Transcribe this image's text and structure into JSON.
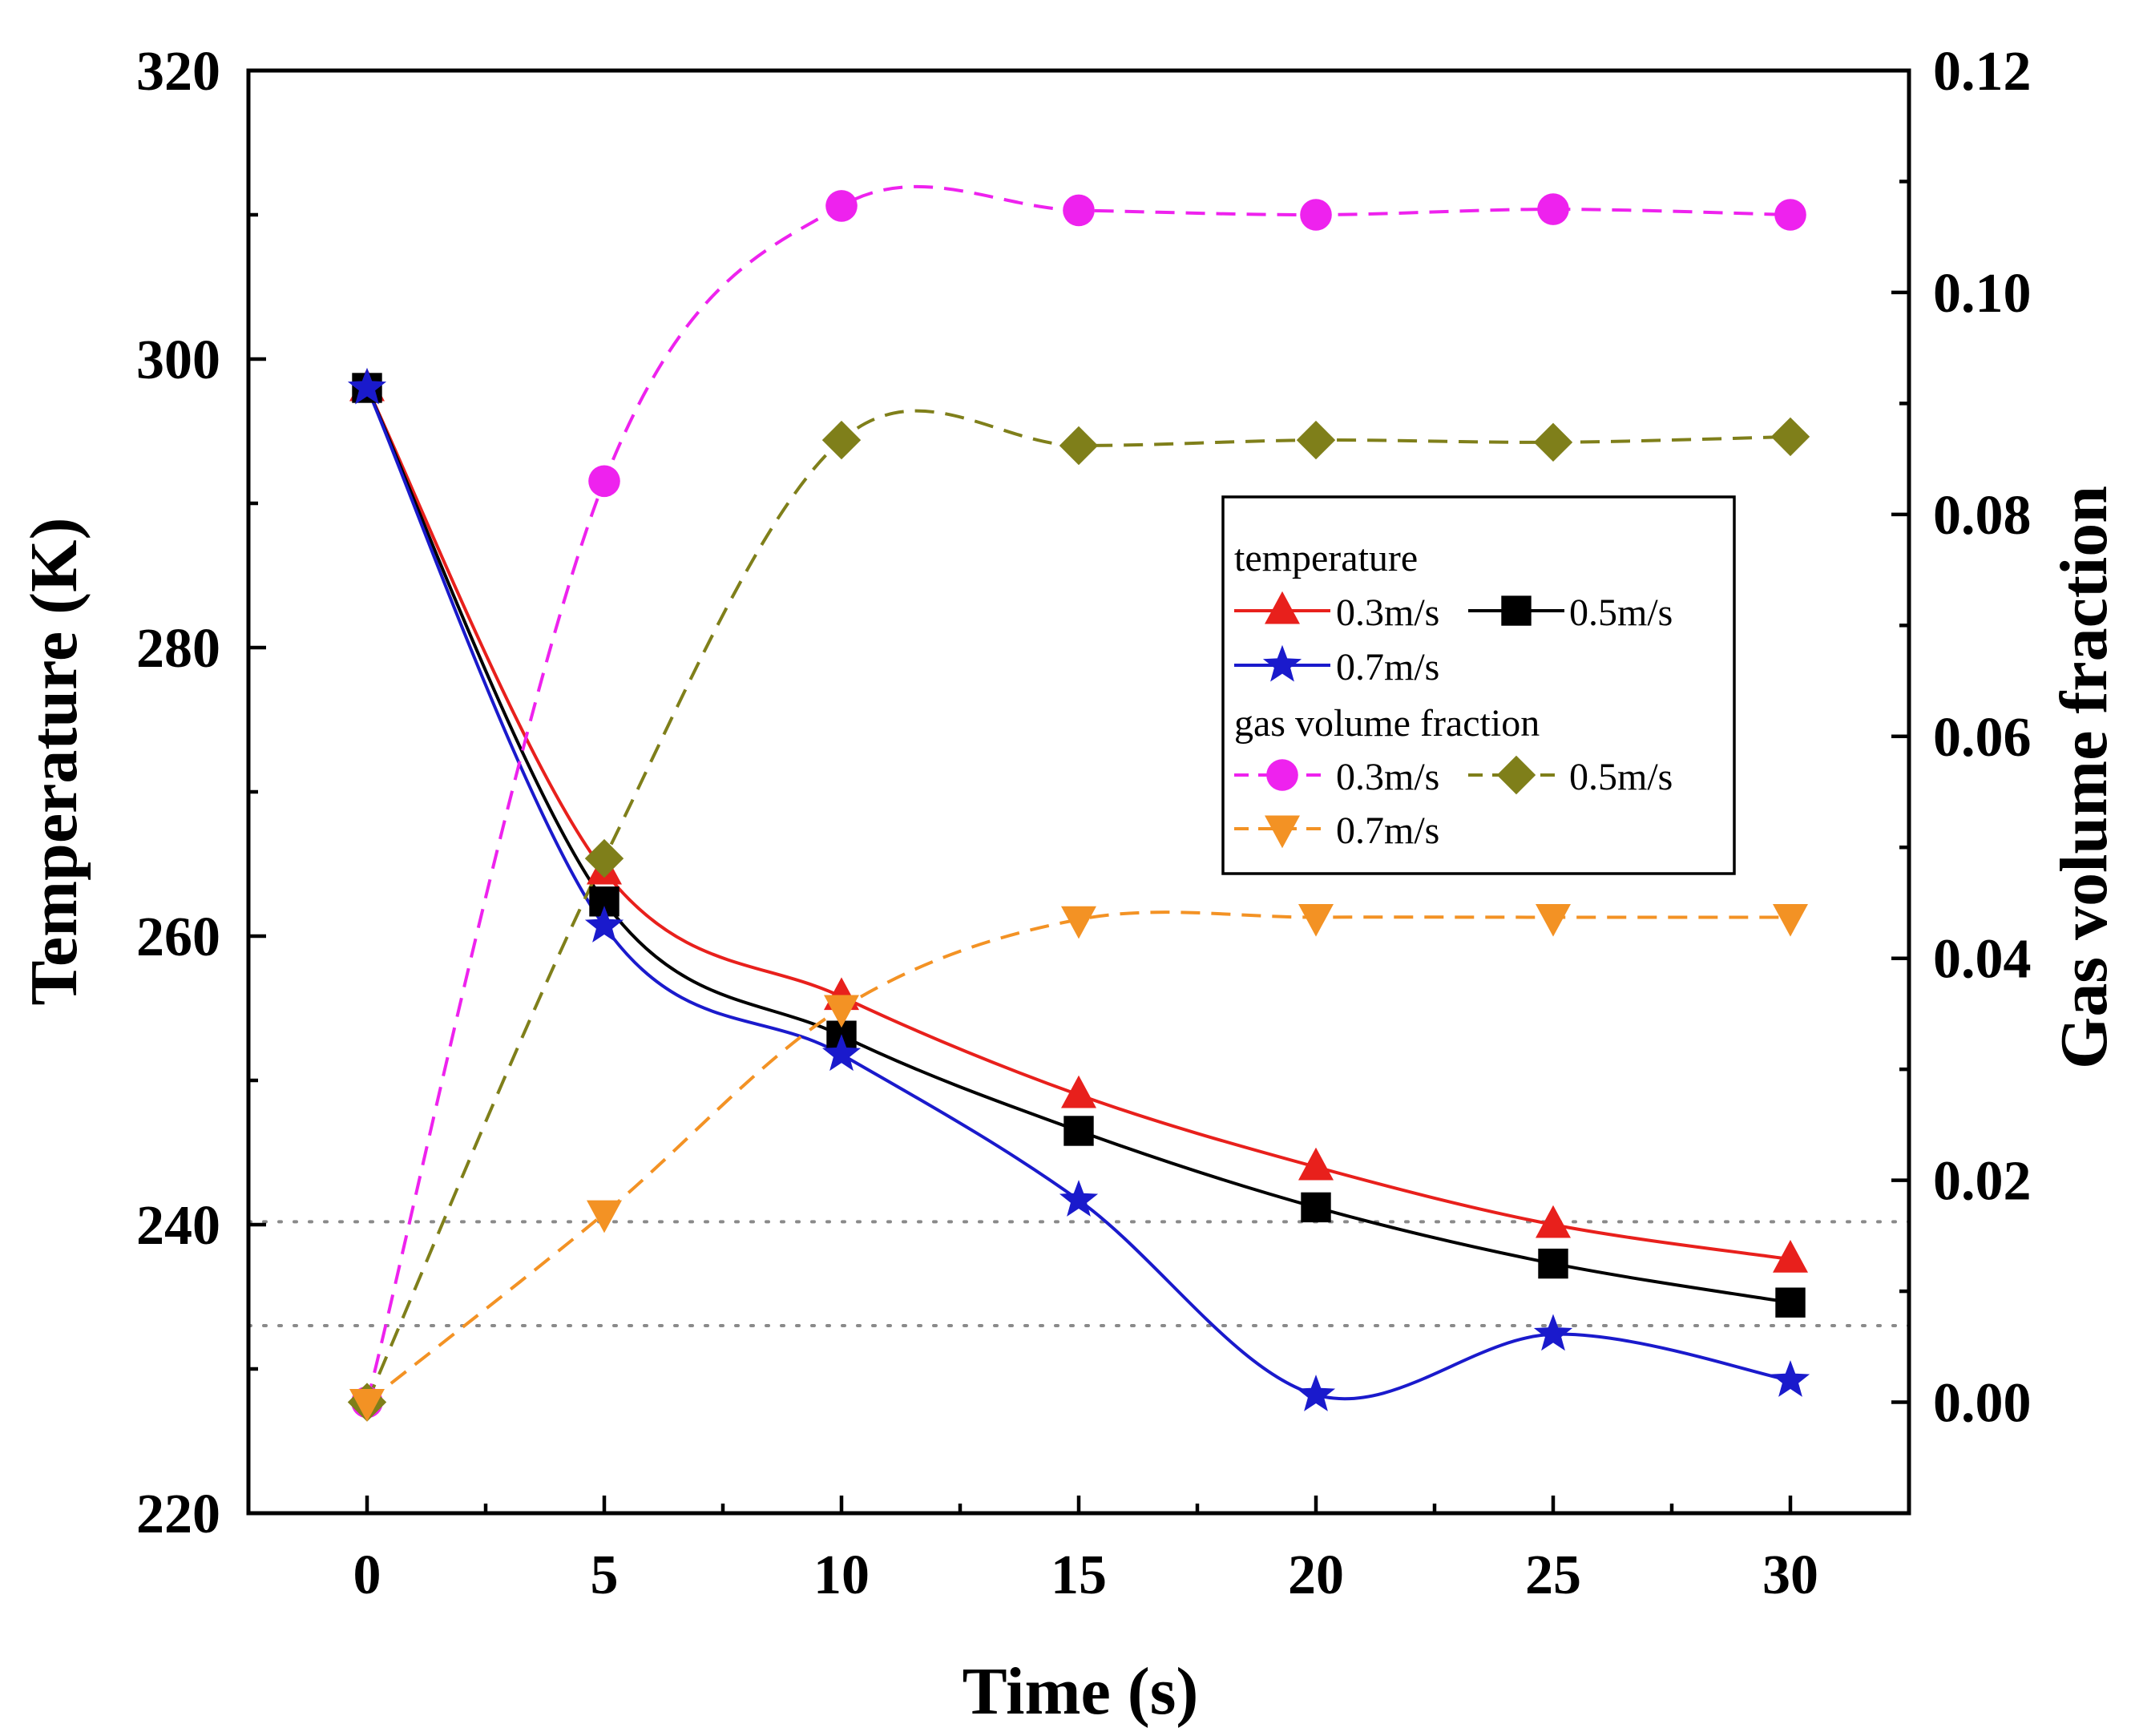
{
  "chart_data": {
    "type": "line",
    "x_axis": {
      "label": "Time (s)",
      "range": [
        -2.5,
        32.5
      ],
      "ticks": [
        0,
        5,
        10,
        15,
        20,
        25,
        30
      ]
    },
    "y_left": {
      "label": "Temperature (K)",
      "range": [
        220,
        320
      ],
      "ticks": [
        220,
        240,
        260,
        280,
        300,
        320
      ],
      "tick_labels": [
        "220",
        "240",
        "260",
        "280",
        "300",
        "320"
      ]
    },
    "y_right": {
      "label": "Gas volume fraction",
      "range": [
        -0.01,
        0.12
      ],
      "ticks": [
        0.0,
        0.02,
        0.04,
        0.06,
        0.08,
        0.1,
        0.12
      ],
      "tick_labels": [
        "0.00",
        "0.02",
        "0.04",
        "0.06",
        "0.08",
        "0.10",
        "0.12"
      ]
    },
    "reference_lines_left_axis": [
      240.2,
      233.0
    ],
    "x": [
      0,
      5,
      10,
      15,
      20,
      25,
      30
    ],
    "legend": {
      "groups": [
        {
          "title": "temperature",
          "entries": [
            "0.3m/s",
            "0.5m/s",
            "0.7m/s"
          ]
        },
        {
          "title": "gas volume fraction",
          "entries": [
            "0.3m/s",
            "0.5m/s",
            "0.7m/s"
          ]
        }
      ]
    },
    "series": [
      {
        "name": "0.3m/s",
        "group": "temperature",
        "axis": "left",
        "color": "#e8201c",
        "marker": "triangle-up",
        "dashed": false,
        "values": [
          298,
          264.5,
          255.8,
          249,
          244,
          240,
          237.6
        ]
      },
      {
        "name": "0.5m/s",
        "group": "temperature",
        "axis": "left",
        "color": "#000000",
        "marker": "square",
        "dashed": false,
        "values": [
          298,
          262.4,
          253.1,
          246.5,
          241.2,
          237.3,
          234.6
        ]
      },
      {
        "name": "0.7m/s",
        "group": "temperature",
        "axis": "left",
        "color": "#1a1acc",
        "marker": "star",
        "dashed": false,
        "values": [
          298,
          260.7,
          251.8,
          241.7,
          228.2,
          232.4,
          229.2
        ]
      },
      {
        "name": "0.3m/s",
        "group": "gas volume fraction",
        "axis": "right",
        "color": "#ee22ee",
        "marker": "circle",
        "dashed": true,
        "values": [
          0.0,
          0.083,
          0.1078,
          0.1074,
          0.107,
          0.1075,
          0.107
        ]
      },
      {
        "name": "0.5m/s",
        "group": "gas volume fraction",
        "axis": "right",
        "color": "#7f7f1a",
        "marker": "diamond",
        "dashed": true,
        "values": [
          0.0,
          0.049,
          0.0867,
          0.0862,
          0.0867,
          0.0865,
          0.087
        ]
      },
      {
        "name": "0.7m/s",
        "group": "gas volume fraction",
        "axis": "right",
        "color": "#f39224",
        "marker": "triangle-down",
        "dashed": true,
        "values": [
          0.0,
          0.017,
          0.0355,
          0.0435,
          0.0437,
          0.0437,
          0.0437
        ]
      }
    ]
  }
}
